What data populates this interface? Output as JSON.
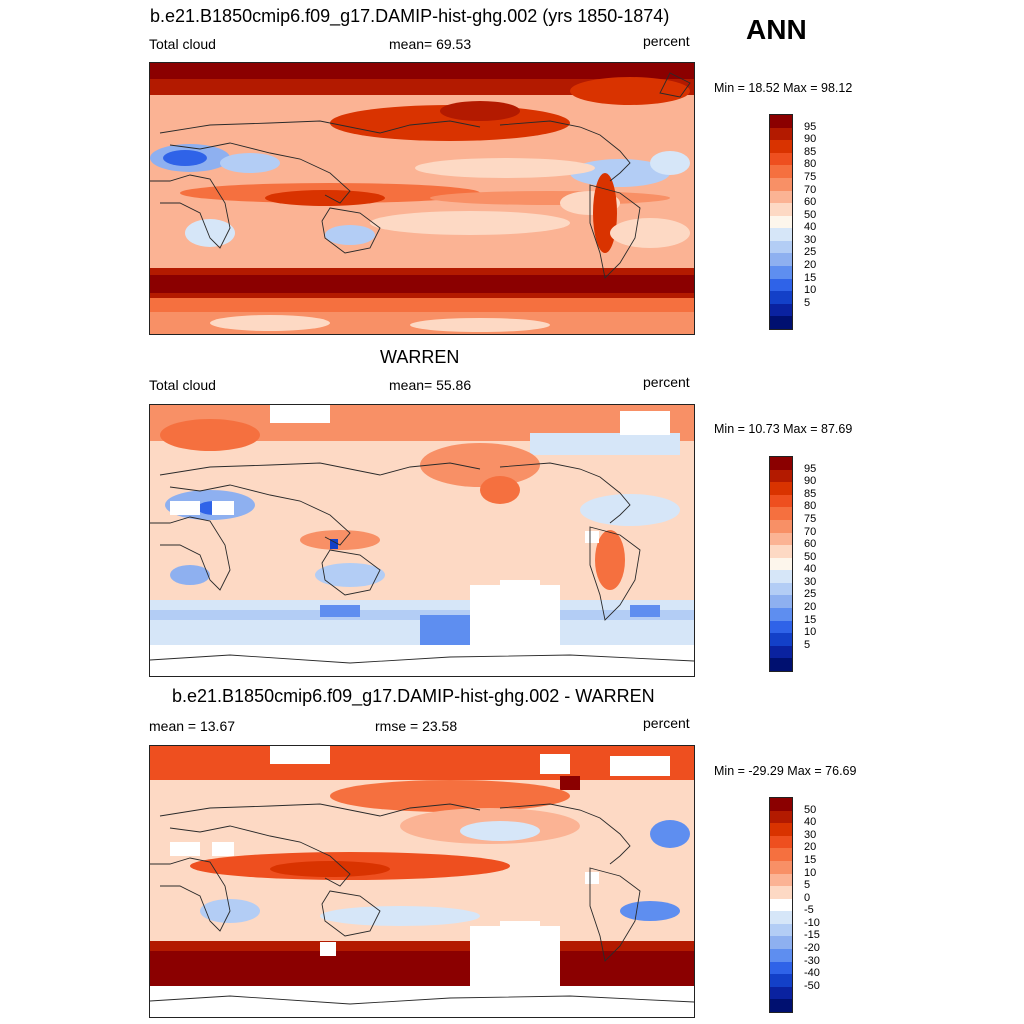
{
  "season": "ANN",
  "panels": [
    {
      "title": "b.e21.B1850cmip6.f09_g17.DAMIP-hist-ghg.002 (yrs 1850-1874)",
      "left_label": "Total cloud",
      "center_label": "mean=  69.53",
      "right_label": "percent",
      "minmax": "Min =  18.52 Max =  98.12",
      "colorbar_levels": [
        "95",
        "90",
        "85",
        "80",
        "75",
        "70",
        "60",
        "50",
        "40",
        "30",
        "25",
        "20",
        "15",
        "10",
        "5"
      ],
      "palette": "abs"
    },
    {
      "title": "WARREN",
      "left_label": "Total cloud",
      "center_label": "mean=  55.86",
      "right_label": "percent",
      "minmax": "Min =  10.73 Max =  87.69",
      "colorbar_levels": [
        "95",
        "90",
        "85",
        "80",
        "75",
        "70",
        "60",
        "50",
        "40",
        "30",
        "25",
        "20",
        "15",
        "10",
        "5"
      ],
      "palette": "abs"
    },
    {
      "title": "b.e21.B1850cmip6.f09_g17.DAMIP-hist-ghg.002 - WARREN",
      "left_label": "mean =  13.67",
      "center_label": "rmse =  23.58",
      "right_label": "percent",
      "minmax": "Min = -29.29 Max =  76.69",
      "colorbar_levels": [
        "50",
        "40",
        "30",
        "20",
        "15",
        "10",
        "5",
        "0",
        "-5",
        "-10",
        "-15",
        "-20",
        "-30",
        "-40",
        "-50"
      ],
      "palette": "diff"
    }
  ],
  "colors": {
    "abs_palette": [
      "#8b0000",
      "#b31a00",
      "#d93300",
      "#ee4f1f",
      "#f5703f",
      "#f89066",
      "#fbb394",
      "#fdd9c4",
      "#fdf6ec",
      "#d6e6f8",
      "#b3cdf5",
      "#8eb0f0",
      "#5e8ef0",
      "#2f63e8",
      "#1340c8",
      "#0a22a0",
      "#001070"
    ],
    "diff_palette": [
      "#8b0000",
      "#b31a00",
      "#d93300",
      "#ee4f1f",
      "#f5703f",
      "#f89066",
      "#fbb394",
      "#fdd9c4",
      "#ffffff",
      "#d6e6f8",
      "#b3cdf5",
      "#8eb0f0",
      "#5e8ef0",
      "#2f63e8",
      "#1340c8",
      "#0a22a0",
      "#001070"
    ],
    "land_outline": "#2a2a2a"
  }
}
